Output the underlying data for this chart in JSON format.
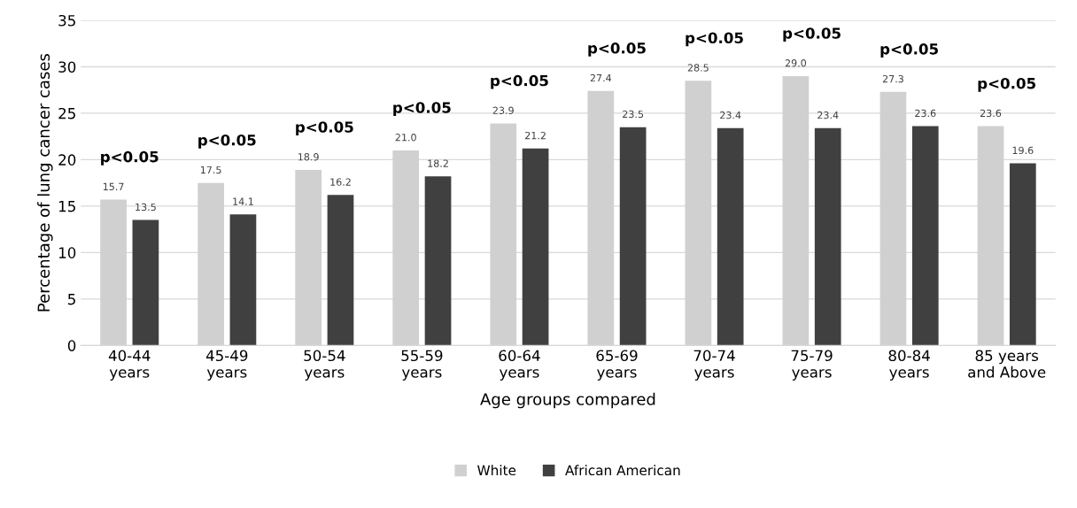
{
  "chart_data": {
    "type": "bar",
    "xlabel": "Age groups compared",
    "ylabel": "Percentage of lung cancer cases",
    "categories": [
      "40-44\nyears",
      "45-49\nyears",
      "50-54\nyears",
      "55-59\nyears",
      "60-64\nyears",
      "65-69\nyears",
      "70-74\nyears",
      "75-79\nyears",
      "80-84\nyears",
      "85 years\nand Above"
    ],
    "series": [
      {
        "name": "White",
        "color": "#d0d0d0",
        "values": [
          15.7,
          17.5,
          18.9,
          21.0,
          23.9,
          27.4,
          28.5,
          29.0,
          27.3,
          23.6
        ],
        "value_labels": [
          "15.7",
          "17.5",
          "18.9",
          "21.0",
          "23.9",
          "27.4",
          "28.5",
          "29.0",
          "27.3",
          "23.6"
        ]
      },
      {
        "name": "African American",
        "color": "#404040",
        "values": [
          13.5,
          14.1,
          16.2,
          18.2,
          21.2,
          23.5,
          23.4,
          23.4,
          23.6,
          19.6
        ],
        "value_labels": [
          "13.5",
          "14.1",
          "16.2",
          "18.2",
          "21.2",
          "23.5",
          "23.4",
          "23.4",
          "23.6",
          "19.6"
        ]
      }
    ],
    "ylim": [
      0,
      35
    ],
    "yticks": [
      0,
      5,
      10,
      15,
      20,
      25,
      30,
      35
    ],
    "grid": "y",
    "legend": "bottom",
    "annotations": [
      "p<0.05",
      "p<0.05",
      "p<0.05",
      "p<0.05",
      "p<0.05",
      "p<0.05",
      "p<0.05",
      "p<0.05",
      "p<0.05",
      "p<0.05"
    ]
  }
}
